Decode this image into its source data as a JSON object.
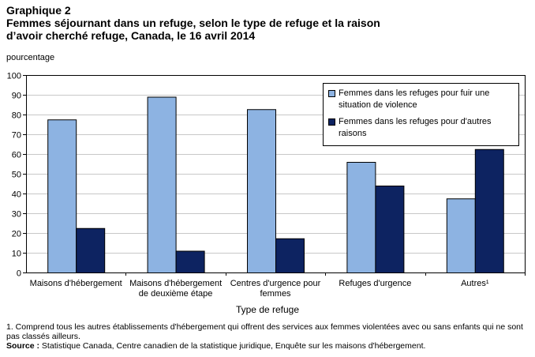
{
  "title": {
    "line1": "Graphique 2",
    "line2": "Femmes séjournant dans un refuge, selon le type de refuge et la raison",
    "line3": "d’avoir cherché refuge, Canada, le 16 avril 2014"
  },
  "footnote": "1. Comprend tous les autres établissements d'hébergement qui offrent des services aux femmes violentées avec ou sans enfants qui ne sont pas classés ailleurs.",
  "source": {
    "label": "Source :",
    "text": " Statistique Canada, Centre canadien de la statistique juridique, Enquête sur les maisons d'hébergement."
  },
  "chart_data": {
    "type": "bar",
    "ylabel": "pourcentage",
    "xlabel": "Type de refuge",
    "ylim": [
      0,
      100
    ],
    "yticks": [
      0,
      10,
      20,
      30,
      40,
      50,
      60,
      70,
      80,
      90,
      100
    ],
    "grid": true,
    "legend_position": "top-right",
    "categories": [
      [
        "Maisons d'hébergement"
      ],
      [
        "Maisons d'hébergement",
        "de deuxième étape"
      ],
      [
        "Centres d'urgence pour",
        "femmes"
      ],
      [
        "Refuges d'urgence"
      ],
      [
        "Autres¹"
      ]
    ],
    "series": [
      {
        "name": "Femmes dans les refuges pour fuir une situation de violence",
        "legend_lines": [
          "Femmes dans les refuges pour fuir une",
          "situation de violence"
        ],
        "color": "#8DB3E2",
        "values": [
          77.5,
          89,
          82.7,
          56,
          37.5
        ]
      },
      {
        "name": "Femmes dans les refuges pour d'autres raisons",
        "legend_lines": [
          "Femmes dans les refuges pour d'autres",
          "raisons"
        ],
        "color": "#0D2361",
        "values": [
          22.5,
          11,
          17.3,
          44,
          62.5
        ]
      }
    ]
  }
}
